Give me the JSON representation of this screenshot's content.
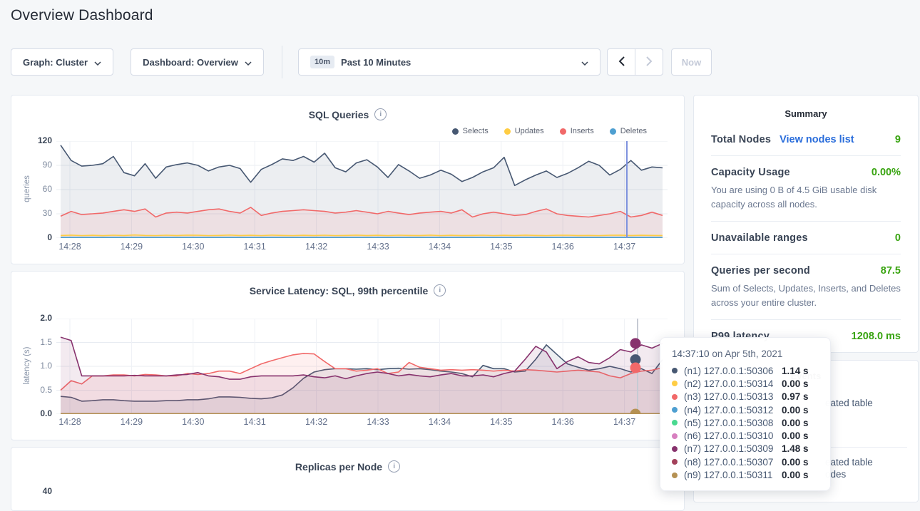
{
  "page": {
    "title": "Overview Dashboard"
  },
  "toolbar": {
    "graph_label": "Graph: Cluster",
    "dashboard_label": "Dashboard: Overview",
    "time_badge": "10m",
    "time_label": "Past 10 Minutes",
    "now_label": "Now"
  },
  "summary": {
    "heading": "Summary",
    "total_nodes_label": "Total Nodes",
    "total_nodes_link": "View nodes list",
    "total_nodes_value": "9",
    "capacity_label": "Capacity Usage",
    "capacity_value": "0.00%",
    "capacity_sub": "You are using 0 B of 4.5 GiB usable disk capacity across all nodes.",
    "unavailable_label": "Unavailable ranges",
    "unavailable_value": "0",
    "qps_label": "Queries per second",
    "qps_value": "87.5",
    "qps_sub": "Sum of Selects, Updates, Inserts, and Deletes across your entire cluster.",
    "p99_label": "P99 latency",
    "p99_value": "1208.0 ms",
    "accent_green": "#39a411",
    "link_blue": "#2a6ddb"
  },
  "events": {
    "heading": "Events",
    "fragments": [
      "eated table",
      "eated table",
      "odes"
    ]
  },
  "tooltip": {
    "time": "14:37:10",
    "date": "on Apr 5th, 2021",
    "rows": [
      {
        "color": "#475872",
        "label": "(n1) 127.0.0.1:50306",
        "value": "1.14 s"
      },
      {
        "color": "#FFCD44",
        "label": "(n2) 127.0.0.1:50314",
        "value": "0.00 s"
      },
      {
        "color": "#F16969",
        "label": "(n3) 127.0.0.1:50313",
        "value": "0.97 s"
      },
      {
        "color": "#4E9FD1",
        "label": "(n4) 127.0.0.1:50312",
        "value": "0.00 s"
      },
      {
        "color": "#49D990",
        "label": "(n5) 127.0.0.1:50308",
        "value": "0.00 s"
      },
      {
        "color": "#D77FBF",
        "label": "(n6) 127.0.0.1:50310",
        "value": "0.00 s"
      },
      {
        "color": "#87326D",
        "label": "(n7) 127.0.0.1:50309",
        "value": "1.48 s"
      },
      {
        "color": "#A3415B",
        "label": "(n8) 127.0.0.1:50307",
        "value": "0.00 s"
      },
      {
        "color": "#B59153",
        "label": "(n9) 127.0.0.1:50311",
        "value": "0.00 s"
      }
    ]
  },
  "chart_data": [
    {
      "type": "line",
      "title": "SQL Queries",
      "ylabel": "queries",
      "ylim": [
        0,
        120
      ],
      "yticks": [
        0,
        30,
        60,
        90,
        120
      ],
      "ytick_labels": [
        "0",
        "30",
        "60",
        "90",
        "120"
      ],
      "categories": [
        "14:28",
        "14:29",
        "14:30",
        "14:31",
        "14:32",
        "14:33",
        "14:34",
        "14:35",
        "14:36",
        "14:37"
      ],
      "legend": [
        {
          "label": "Selects",
          "color": "#475872"
        },
        {
          "label": "Updates",
          "color": "#FFCD44"
        },
        {
          "label": "Inserts",
          "color": "#F16969"
        },
        {
          "label": "Deletes",
          "color": "#4E9FD1"
        }
      ],
      "hover_time": "14:37:10",
      "series": [
        {
          "name": "Selects",
          "color": "#475872",
          "values": [
            115,
            96,
            89,
            90,
            92,
            101,
            81,
            77,
            92,
            74,
            88,
            91,
            93,
            90,
            83,
            88,
            90,
            86,
            69,
            85,
            91,
            98,
            96,
            101,
            94,
            105,
            87,
            82,
            93,
            97,
            88,
            75,
            91,
            83,
            74,
            78,
            84,
            79,
            70,
            75,
            82,
            87,
            100,
            65,
            72,
            78,
            83,
            75,
            80,
            87,
            95,
            90,
            78,
            85,
            96,
            84,
            88,
            87
          ]
        },
        {
          "name": "Inserts",
          "color": "#F16969",
          "values": [
            27,
            33,
            29,
            30,
            31,
            33,
            35,
            33,
            36,
            26,
            31,
            32,
            31,
            33,
            35,
            36,
            33,
            31,
            38,
            28,
            31,
            33,
            34,
            35,
            34,
            33,
            31,
            32,
            34,
            32,
            30,
            33,
            31,
            29,
            31,
            32,
            33,
            31,
            35,
            26,
            30,
            32,
            30,
            28,
            29,
            33,
            36,
            30,
            28,
            27,
            26,
            28,
            30,
            33,
            26,
            28,
            32,
            28
          ]
        },
        {
          "name": "Updates",
          "color": "#FFCD44",
          "values": [
            3.2,
            3.6,
            3.1,
            3.4,
            3.0,
            3.5,
            3.2,
            3.8,
            3.3,
            3.1,
            3.5,
            3.2,
            3.6,
            3.4,
            3.1,
            3.3,
            3.7,
            3.2,
            3.4,
            3.1,
            3.6,
            3.3,
            3.1,
            3.4,
            3.2,
            3.5,
            3.1,
            3.3,
            3.6,
            3.2,
            3.4,
            3.1,
            3.5,
            3.3,
            3.2,
            3.6,
            3.1,
            3.4,
            3.2,
            3.3,
            3.5,
            3.1,
            3.4,
            3.2,
            3.6,
            3.3,
            3.1,
            3.4,
            3.5,
            3.2,
            3.3,
            3.1,
            3.4,
            3.6,
            3.2,
            3.4,
            3.3,
            3.2
          ]
        },
        {
          "name": "Deletes",
          "color": "#4E9FD1",
          "constant": 0.6
        }
      ]
    },
    {
      "type": "line",
      "title": "Service Latency: SQL, 99th percentile",
      "ylabel": "latency (s)",
      "ylim": [
        0,
        2.0
      ],
      "yticks": [
        0,
        0.5,
        1.0,
        1.5,
        2.0
      ],
      "ytick_labels": [
        "0.0",
        "0.5",
        "1.0",
        "1.5",
        "2.0"
      ],
      "categories": [
        "14:28",
        "14:29",
        "14:30",
        "14:31",
        "14:32",
        "14:33",
        "14:34",
        "14:35",
        "14:36",
        "14:37"
      ],
      "hover_time": "14:37:10",
      "hover_dots": [
        {
          "color": "#87326D",
          "value": 1.48
        },
        {
          "color": "#475872",
          "value": 1.14
        },
        {
          "color": "#F16969",
          "value": 0.97
        },
        {
          "color": "#B59153",
          "value": 0.0
        }
      ],
      "series": [
        {
          "name": "(n1) 127.0.0.1:50306",
          "color": "#475872",
          "values": [
            0.37,
            0.35,
            0.27,
            0.28,
            0.3,
            0.3,
            0.28,
            0.27,
            0.27,
            0.27,
            0.28,
            0.28,
            0.3,
            0.3,
            0.32,
            0.36,
            0.36,
            0.35,
            0.33,
            0.32,
            0.34,
            0.4,
            0.55,
            0.75,
            0.88,
            0.93,
            0.95,
            0.95,
            0.94,
            0.95,
            0.93,
            0.95,
            0.96,
            0.94,
            0.95,
            0.93,
            0.9,
            0.88,
            0.85,
            0.78,
            1.02,
            0.95,
            0.95,
            0.88,
            0.9,
            1.15,
            1.45,
            1.25,
            1.05,
            0.98,
            0.92,
            0.95,
            1.0,
            0.95,
            0.88,
            0.95,
            0.85,
            1.14
          ]
        },
        {
          "name": "(n3) 127.0.0.1:50313",
          "color": "#F16969",
          "values": [
            0.5,
            0.7,
            0.63,
            0.8,
            0.8,
            0.82,
            0.82,
            0.8,
            0.83,
            0.82,
            0.8,
            0.8,
            0.85,
            0.83,
            0.85,
            0.9,
            0.9,
            0.85,
            0.95,
            1.05,
            1.12,
            1.18,
            1.24,
            1.27,
            1.26,
            1.1,
            0.95,
            0.95,
            0.9,
            0.92,
            0.95,
            0.85,
            0.88,
            1.08,
            0.98,
            0.95,
            0.92,
            0.93,
            0.92,
            0.93,
            0.92,
            0.9,
            0.92,
            0.9,
            0.93,
            0.92,
            0.9,
            0.88,
            0.9,
            0.92,
            0.9,
            0.88,
            0.8,
            0.76,
            0.85,
            0.9,
            0.92,
            0.97
          ]
        },
        {
          "name": "(n7) 127.0.0.1:50309",
          "color": "#87326D",
          "values": [
            1.61,
            1.54,
            0.8,
            0.8,
            0.8,
            0.8,
            0.8,
            0.81,
            0.8,
            0.8,
            0.8,
            0.82,
            0.83,
            0.87,
            0.8,
            0.78,
            0.73,
            0.73,
            0.78,
            0.8,
            0.8,
            0.8,
            0.8,
            0.82,
            0.78,
            0.76,
            0.8,
            0.74,
            0.8,
            0.85,
            0.88,
            0.85,
            0.8,
            0.83,
            0.8,
            0.78,
            0.82,
            0.85,
            0.8,
            0.8,
            0.82,
            0.78,
            0.85,
            0.9,
            1.15,
            1.42,
            1.3,
            0.95,
            1.1,
            1.2,
            1.08,
            1.05,
            1.18,
            1.35,
            1.3,
            1.45,
            1.38,
            1.48
          ]
        },
        {
          "name": "(n2) 127.0.0.1:50314",
          "color": "#FFCD44",
          "constant": 0.004
        },
        {
          "name": "(n4) 127.0.0.1:50312",
          "color": "#4E9FD1",
          "constant": 0.004
        },
        {
          "name": "(n5) 127.0.0.1:50308",
          "color": "#49D990",
          "constant": 0.004
        },
        {
          "name": "(n6) 127.0.0.1:50310",
          "color": "#D77FBF",
          "constant": 0.004
        },
        {
          "name": "(n8) 127.0.0.1:50307",
          "color": "#A3415B",
          "constant": 0.004
        },
        {
          "name": "(n9) 127.0.0.1:50311",
          "color": "#B59153",
          "constant": 0.008
        }
      ]
    },
    {
      "type": "line",
      "title": "Replicas per Node",
      "visible_ytick": "40"
    }
  ]
}
